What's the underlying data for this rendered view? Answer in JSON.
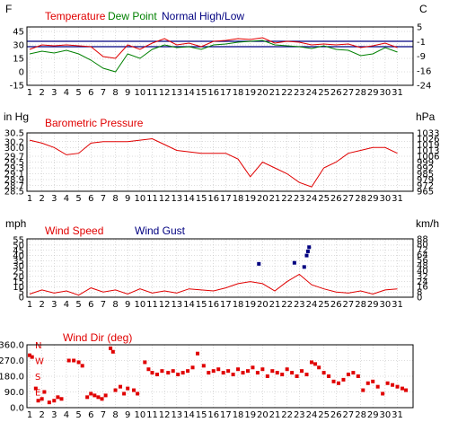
{
  "days": [
    "1",
    "2",
    "3",
    "4",
    "5",
    "6",
    "7",
    "8",
    "9",
    "10",
    "11",
    "12",
    "13",
    "14",
    "15",
    "16",
    "17",
    "18",
    "19",
    "20",
    "21",
    "22",
    "23",
    "24",
    "25",
    "26",
    "27",
    "28",
    "29",
    "30",
    "31"
  ],
  "colors": {
    "temp": "#e00000",
    "dew": "#008000",
    "normal": "#000080",
    "pressure": "#e00000",
    "wind": "#e00000",
    "gust": "#000080",
    "winddir": "#e00000",
    "grid": "#b8b8b8",
    "frame": "#000000",
    "compass": "#e00000"
  },
  "chart_data": [
    {
      "type": "line",
      "id": "temperature",
      "left_unit": "F",
      "right_unit": "C",
      "series": [
        {
          "name": "Temperature",
          "values": [
            25,
            30,
            29,
            30,
            29,
            28,
            17,
            15,
            30,
            25,
            32,
            37,
            30,
            32,
            28,
            34,
            35,
            37,
            36,
            38,
            32,
            34,
            33,
            30,
            31,
            30,
            31,
            27,
            29,
            32,
            27
          ]
        },
        {
          "name": "Dew Point",
          "values": [
            20,
            23,
            21,
            24,
            20,
            13,
            4,
            0,
            20,
            15,
            25,
            30,
            27,
            28,
            25,
            30,
            31,
            33,
            34,
            35,
            30,
            29,
            28,
            26,
            29,
            25,
            24,
            18,
            20,
            27,
            22
          ]
        },
        {
          "name": "Normal High/Low",
          "values": [
            34,
            34,
            34,
            34,
            34,
            34,
            34,
            34,
            34,
            34,
            34,
            34,
            34,
            34,
            34,
            34,
            34,
            34,
            34,
            34,
            34,
            34,
            34,
            34,
            34,
            34,
            34,
            34,
            34,
            34,
            34
          ]
        },
        {
          "name": "Normal low",
          "values": [
            28,
            28,
            28,
            28,
            28,
            28,
            28,
            28,
            28,
            28,
            28,
            28,
            28,
            28,
            28,
            28,
            28,
            28,
            28,
            28,
            28,
            28,
            28,
            28,
            28,
            28,
            28,
            28,
            28,
            28,
            28
          ]
        }
      ],
      "left_ticks": [
        "45",
        "30",
        "15",
        "0",
        "-15"
      ],
      "left_vals": [
        45,
        30,
        15,
        0,
        -15
      ],
      "right_ticks": [
        "5",
        "-1",
        "-9",
        "-16",
        "-24"
      ],
      "ylim": [
        -15,
        50
      ]
    },
    {
      "type": "line",
      "id": "pressure",
      "left_unit": "in Hg",
      "right_unit": "hPa",
      "title": "Barometric Pressure",
      "values": [
        30.25,
        30.15,
        30.0,
        29.75,
        29.8,
        30.15,
        30.2,
        30.2,
        30.2,
        30.25,
        30.3,
        30.1,
        29.9,
        29.85,
        29.8,
        29.8,
        29.8,
        29.6,
        29.0,
        29.5,
        29.3,
        29.1,
        28.8,
        28.65,
        29.3,
        29.5,
        29.8,
        29.9,
        30.0,
        30.0,
        29.8
      ],
      "left_ticks": [
        "30.5",
        "30.2",
        "30.0",
        "29.7",
        "29.5",
        "29.3",
        "29.1",
        "28.9",
        "28.7",
        "28.5"
      ],
      "left_vals": [
        30.5,
        30.2,
        30.0,
        29.7,
        29.5,
        29.3,
        29.1,
        28.9,
        28.7,
        28.5
      ],
      "right_ticks": [
        "1033",
        "1026",
        "1019",
        "1013",
        "1006",
        "999",
        "992",
        "985",
        "979",
        "972",
        "965"
      ],
      "ylim": [
        28.5,
        30.5
      ]
    },
    {
      "type": "line",
      "id": "wind",
      "left_unit": "mph",
      "right_unit": "km/h",
      "series": [
        {
          "name": "Wind Speed",
          "values": [
            3,
            7,
            4,
            6,
            2,
            9,
            5,
            7,
            3,
            8,
            4,
            6,
            4,
            8,
            7,
            6,
            9,
            13,
            15,
            13,
            6,
            15,
            22,
            12,
            8,
            5,
            4,
            6,
            3,
            7,
            8
          ]
        },
        {
          "name": "Wind Gust",
          "points": [
            [
              19.7,
              32
            ],
            [
              22.6,
              33
            ],
            [
              23.4,
              29
            ],
            [
              23.6,
              40
            ],
            [
              23.7,
              44
            ],
            [
              23.8,
              48
            ]
          ]
        }
      ],
      "left_ticks": [
        "55",
        "50",
        "45",
        "40",
        "35",
        "30",
        "25",
        "20",
        "15",
        "10",
        "5",
        "0"
      ],
      "left_vals": [
        55,
        50,
        45,
        40,
        35,
        30,
        25,
        20,
        15,
        10,
        5,
        0
      ],
      "right_ticks": [
        "88",
        "80",
        "72",
        "64",
        "56",
        "48",
        "40",
        "32",
        "24",
        "16",
        "8",
        "0"
      ],
      "ylim": [
        0,
        56
      ]
    },
    {
      "type": "scatter",
      "id": "winddir",
      "title": "Wind Dir (deg)",
      "compass": [
        "N",
        "W",
        "S",
        "E"
      ],
      "left_ticks": [
        "360.0",
        "270.0",
        "180.0",
        "90.0",
        "0.0"
      ],
      "left_vals": [
        360,
        270,
        180,
        90,
        0
      ],
      "ylim": [
        0,
        360
      ],
      "points": [
        [
          1.0,
          300
        ],
        [
          1.2,
          290
        ],
        [
          1.5,
          110
        ],
        [
          1.7,
          40
        ],
        [
          2.0,
          50
        ],
        [
          2.2,
          90
        ],
        [
          2.6,
          30
        ],
        [
          3.0,
          40
        ],
        [
          3.3,
          60
        ],
        [
          3.6,
          50
        ],
        [
          4.2,
          270
        ],
        [
          4.6,
          270
        ],
        [
          5.0,
          260
        ],
        [
          5.3,
          240
        ],
        [
          5.7,
          60
        ],
        [
          6.0,
          80
        ],
        [
          6.3,
          70
        ],
        [
          6.6,
          60
        ],
        [
          6.9,
          50
        ],
        [
          7.2,
          70
        ],
        [
          7.6,
          340
        ],
        [
          7.8,
          320
        ],
        [
          8.0,
          100
        ],
        [
          8.4,
          120
        ],
        [
          8.7,
          80
        ],
        [
          9.0,
          110
        ],
        [
          9.5,
          100
        ],
        [
          9.8,
          80
        ],
        [
          10.4,
          260
        ],
        [
          10.7,
          220
        ],
        [
          11.0,
          200
        ],
        [
          11.4,
          190
        ],
        [
          11.8,
          210
        ],
        [
          12.3,
          200
        ],
        [
          12.7,
          210
        ],
        [
          13.1,
          190
        ],
        [
          13.5,
          200
        ],
        [
          13.9,
          210
        ],
        [
          14.3,
          230
        ],
        [
          14.7,
          310
        ],
        [
          15.2,
          240
        ],
        [
          15.6,
          200
        ],
        [
          16.0,
          210
        ],
        [
          16.4,
          220
        ],
        [
          16.8,
          200
        ],
        [
          17.2,
          210
        ],
        [
          17.6,
          190
        ],
        [
          18.0,
          220
        ],
        [
          18.4,
          200
        ],
        [
          18.8,
          210
        ],
        [
          19.2,
          230
        ],
        [
          19.6,
          200
        ],
        [
          20.0,
          220
        ],
        [
          20.4,
          180
        ],
        [
          20.8,
          210
        ],
        [
          21.2,
          200
        ],
        [
          21.6,
          190
        ],
        [
          22.0,
          220
        ],
        [
          22.4,
          200
        ],
        [
          22.8,
          180
        ],
        [
          23.2,
          210
        ],
        [
          23.6,
          190
        ],
        [
          24.0,
          260
        ],
        [
          24.3,
          250
        ],
        [
          24.6,
          230
        ],
        [
          25.0,
          200
        ],
        [
          25.4,
          180
        ],
        [
          25.8,
          150
        ],
        [
          26.2,
          140
        ],
        [
          26.6,
          160
        ],
        [
          27.0,
          190
        ],
        [
          27.4,
          200
        ],
        [
          27.8,
          180
        ],
        [
          28.2,
          100
        ],
        [
          28.6,
          140
        ],
        [
          29.0,
          150
        ],
        [
          29.4,
          120
        ],
        [
          29.8,
          80
        ],
        [
          30.2,
          140
        ],
        [
          30.6,
          130
        ],
        [
          31.0,
          120
        ],
        [
          31.4,
          110
        ],
        [
          31.7,
          100
        ]
      ]
    }
  ]
}
